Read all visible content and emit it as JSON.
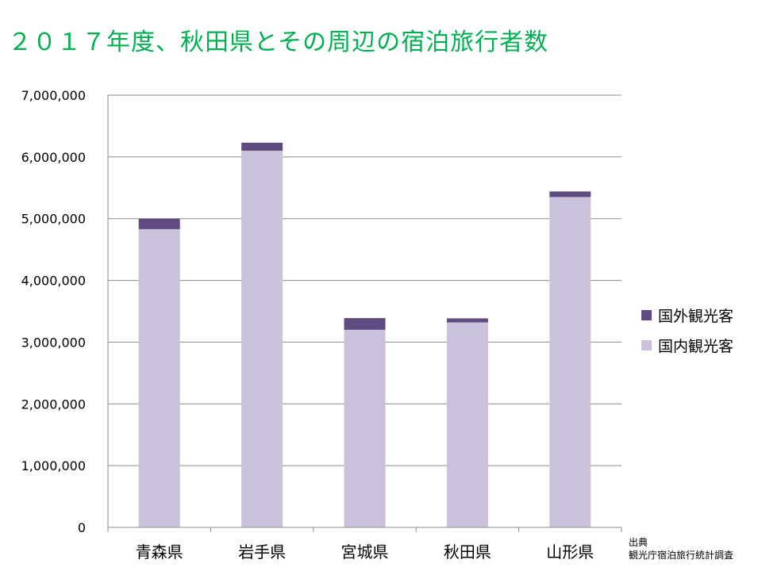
{
  "title": "２０１７年度、秋田県とその周辺の宿泊旅行者数",
  "source": {
    "line1": "出典",
    "line2": "観光庁宿泊旅行統計調査"
  },
  "colors": {
    "title": "#00B050",
    "domestic": "#CBC1DB",
    "foreign": "#5F4B7F",
    "grid": "#8C8C8C"
  },
  "chart_data": {
    "type": "bar",
    "stacked": true,
    "categories": [
      "青森県",
      "岩手県",
      "宮城県",
      "秋田県",
      "山形県"
    ],
    "series": [
      {
        "name": "国内観光客",
        "values": [
          4830000,
          6100000,
          3200000,
          3320000,
          5350000
        ]
      },
      {
        "name": "国外観光客",
        "values": [
          170000,
          130000,
          190000,
          65000,
          90000
        ]
      }
    ],
    "ylim": [
      0,
      7000000
    ],
    "yticks": [
      0,
      1000000,
      2000000,
      3000000,
      4000000,
      5000000,
      6000000,
      7000000
    ],
    "ytick_labels": [
      "0",
      "1,000,000",
      "2,000,000",
      "3,000,000",
      "4,000,000",
      "5,000,000",
      "6,000,000",
      "7,000,000"
    ],
    "grid": true,
    "legend_position": "right"
  }
}
